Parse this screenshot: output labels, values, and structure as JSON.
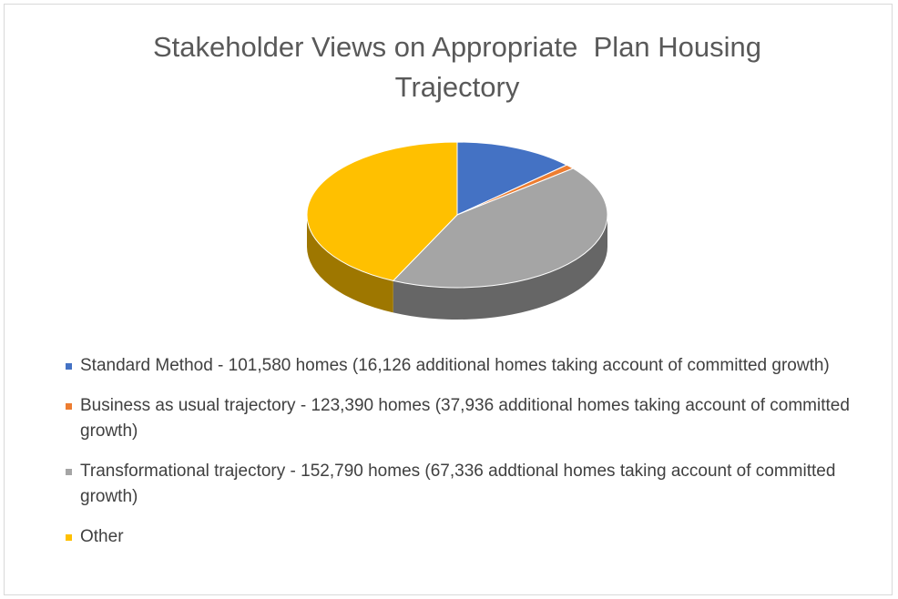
{
  "chart_data": {
    "type": "pie",
    "title": "Stakeholder Views on Appropriate  Plan Housing Trajectory",
    "categories": [
      "Standard Method - 101,580 homes (16,126 additional homes taking account of committed growth)",
      "Business as usual trajectory - 123,390 homes (37,936 additional homes taking account of committed growth)",
      "Transformational trajectory - 152,790 homes (67,336 addtional homes taking account of committed growth)",
      "Other"
    ],
    "values": [
      13,
      1,
      43,
      43
    ],
    "colors": [
      "#4472c4",
      "#ed7d31",
      "#a5a5a5",
      "#ffc000"
    ],
    "legend": "bottom"
  }
}
